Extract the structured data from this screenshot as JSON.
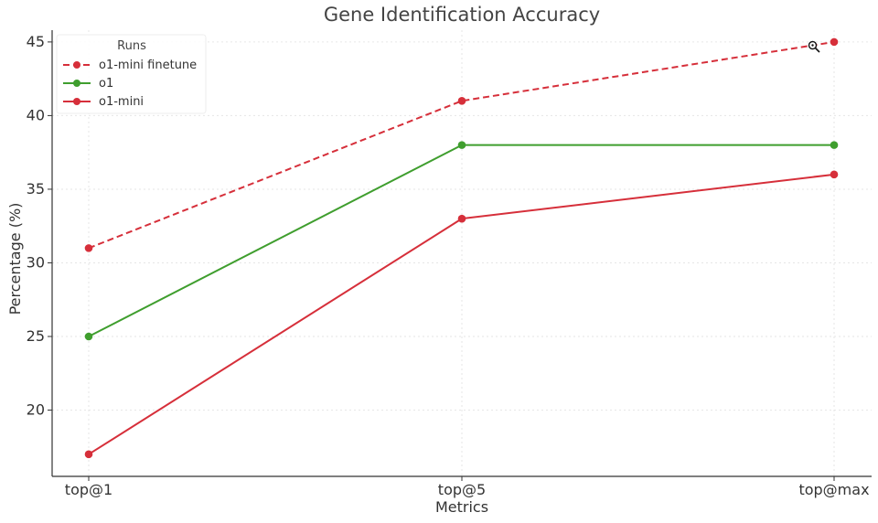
{
  "chart_data": {
    "type": "line",
    "title": "Gene Identification Accuracy",
    "xlabel": "Metrics",
    "ylabel": "Percentage (%)",
    "categories": [
      "top@1",
      "top@5",
      "top@max"
    ],
    "ylim": [
      15.5,
      45.8
    ],
    "yticks": [
      20,
      25,
      30,
      35,
      40,
      45
    ],
    "grid": true,
    "legend": {
      "title": "Runs",
      "placement": "top-left"
    },
    "series": [
      {
        "name": "o1-mini finetune",
        "values": [
          31,
          41,
          45
        ],
        "color": "#d62f3a",
        "style": "dashed"
      },
      {
        "name": "o1",
        "values": [
          25,
          38,
          38
        ],
        "color": "#3f9e2e",
        "style": "solid"
      },
      {
        "name": "o1-mini",
        "values": [
          17,
          33,
          36
        ],
        "color": "#d62f3a",
        "style": "solid"
      }
    ]
  }
}
